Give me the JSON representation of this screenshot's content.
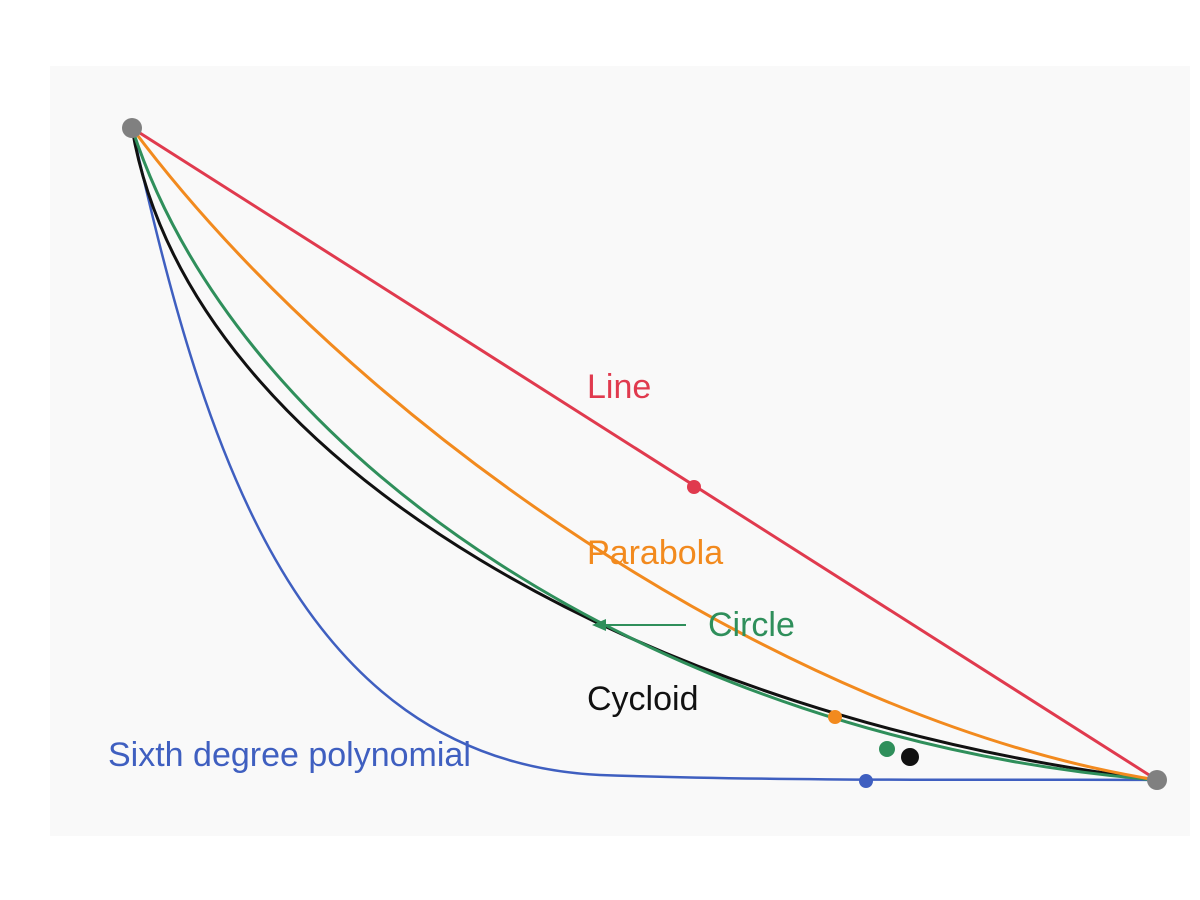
{
  "curves": [
    {
      "key": "line",
      "label": "Line",
      "color": "#e03a4e"
    },
    {
      "key": "parabola",
      "label": "Parabola",
      "color": "#f28a1e"
    },
    {
      "key": "circle",
      "label": "Circle",
      "color": "#2f8f5b"
    },
    {
      "key": "cycloid",
      "label": "Cycloid",
      "color": "#111111"
    },
    {
      "key": "polynomial",
      "label": "Sixth degree polynomial",
      "color": "#3f5fc0"
    }
  ],
  "endpoint_color": "#808080"
}
